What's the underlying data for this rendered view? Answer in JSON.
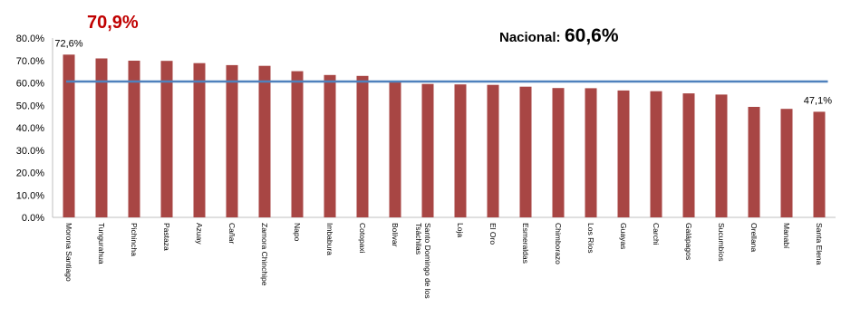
{
  "highlight_label": "70,9%",
  "national": {
    "label": "Nacional:",
    "value": "60,6%"
  },
  "colors": {
    "bar": "#a84644",
    "line": "#4f81bd"
  },
  "chart_data": {
    "type": "bar",
    "categories": [
      "Morona Santiago",
      "Tungurahua",
      "Pichincha",
      "Pastaza",
      "Azuay",
      "Cañar",
      "Zamora Chinchipe",
      "Napo",
      "Imbabura",
      "Cotopaxi",
      "Bolívar",
      "Santo Domingo de los Tsáchilas",
      "Loja",
      "El Oro",
      "Esmeraldas",
      "Chimborazo",
      "Los Ríos",
      "Guayas",
      "Carchi",
      "Galápagos",
      "Sucumbíos",
      "Orellana",
      "Manabí",
      "Santa Elena"
    ],
    "values": [
      72.6,
      70.9,
      69.9,
      69.8,
      68.8,
      67.9,
      67.6,
      65.2,
      63.5,
      63.1,
      60.6,
      59.5,
      59.3,
      59.1,
      58.3,
      57.7,
      57.6,
      56.6,
      56.3,
      55.3,
      54.8,
      49.3,
      48.4,
      47.1
    ],
    "reference_line": 60.6,
    "ylim": [
      0,
      80
    ],
    "yticks": [
      "0.0%",
      "10.0%",
      "20.0%",
      "30.0%",
      "40.0%",
      "50.0%",
      "60.0%",
      "70.0%",
      "80.0%"
    ],
    "data_labels": [
      {
        "index": 0,
        "text": "72,6%"
      },
      {
        "index": 23,
        "text": "47,1%"
      }
    ],
    "title": "",
    "xlabel": "",
    "ylabel": ""
  }
}
